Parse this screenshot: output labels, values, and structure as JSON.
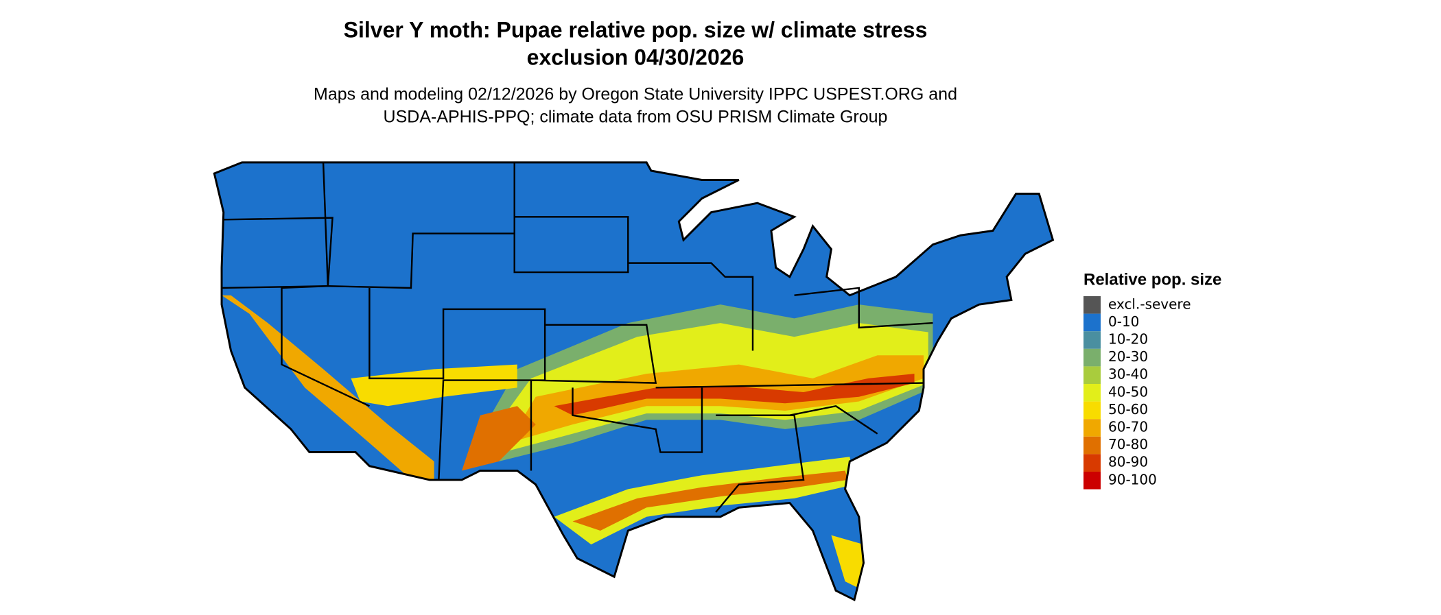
{
  "header": {
    "title": [
      "Silver Y moth: Pupae relative pop. size w/ climate stress",
      "exclusion 04/30/2026"
    ],
    "subtitle": [
      "Maps and modeling 02/12/2026 by Oregon State University IPPC USPEST.ORG and",
      "USDA-APHIS-PPQ; climate data from OSU PRISM Climate Group"
    ]
  },
  "legend": {
    "title": "Relative pop. size",
    "items": [
      {
        "label": "excl.-severe",
        "color": "#555555"
      },
      {
        "label": "0-10",
        "color": "#1c72cc"
      },
      {
        "label": "10-20",
        "color": "#4a8fa0"
      },
      {
        "label": "20-30",
        "color": "#7aaf6c"
      },
      {
        "label": "30-40",
        "color": "#a9cc3d"
      },
      {
        "label": "40-50",
        "color": "#e2ee1a"
      },
      {
        "label": "50-60",
        "color": "#f8dc00"
      },
      {
        "label": "60-70",
        "color": "#f0a800"
      },
      {
        "label": "70-80",
        "color": "#e07000"
      },
      {
        "label": "80-90",
        "color": "#d83a00"
      },
      {
        "label": "90-100",
        "color": "#cc0000"
      }
    ]
  }
}
